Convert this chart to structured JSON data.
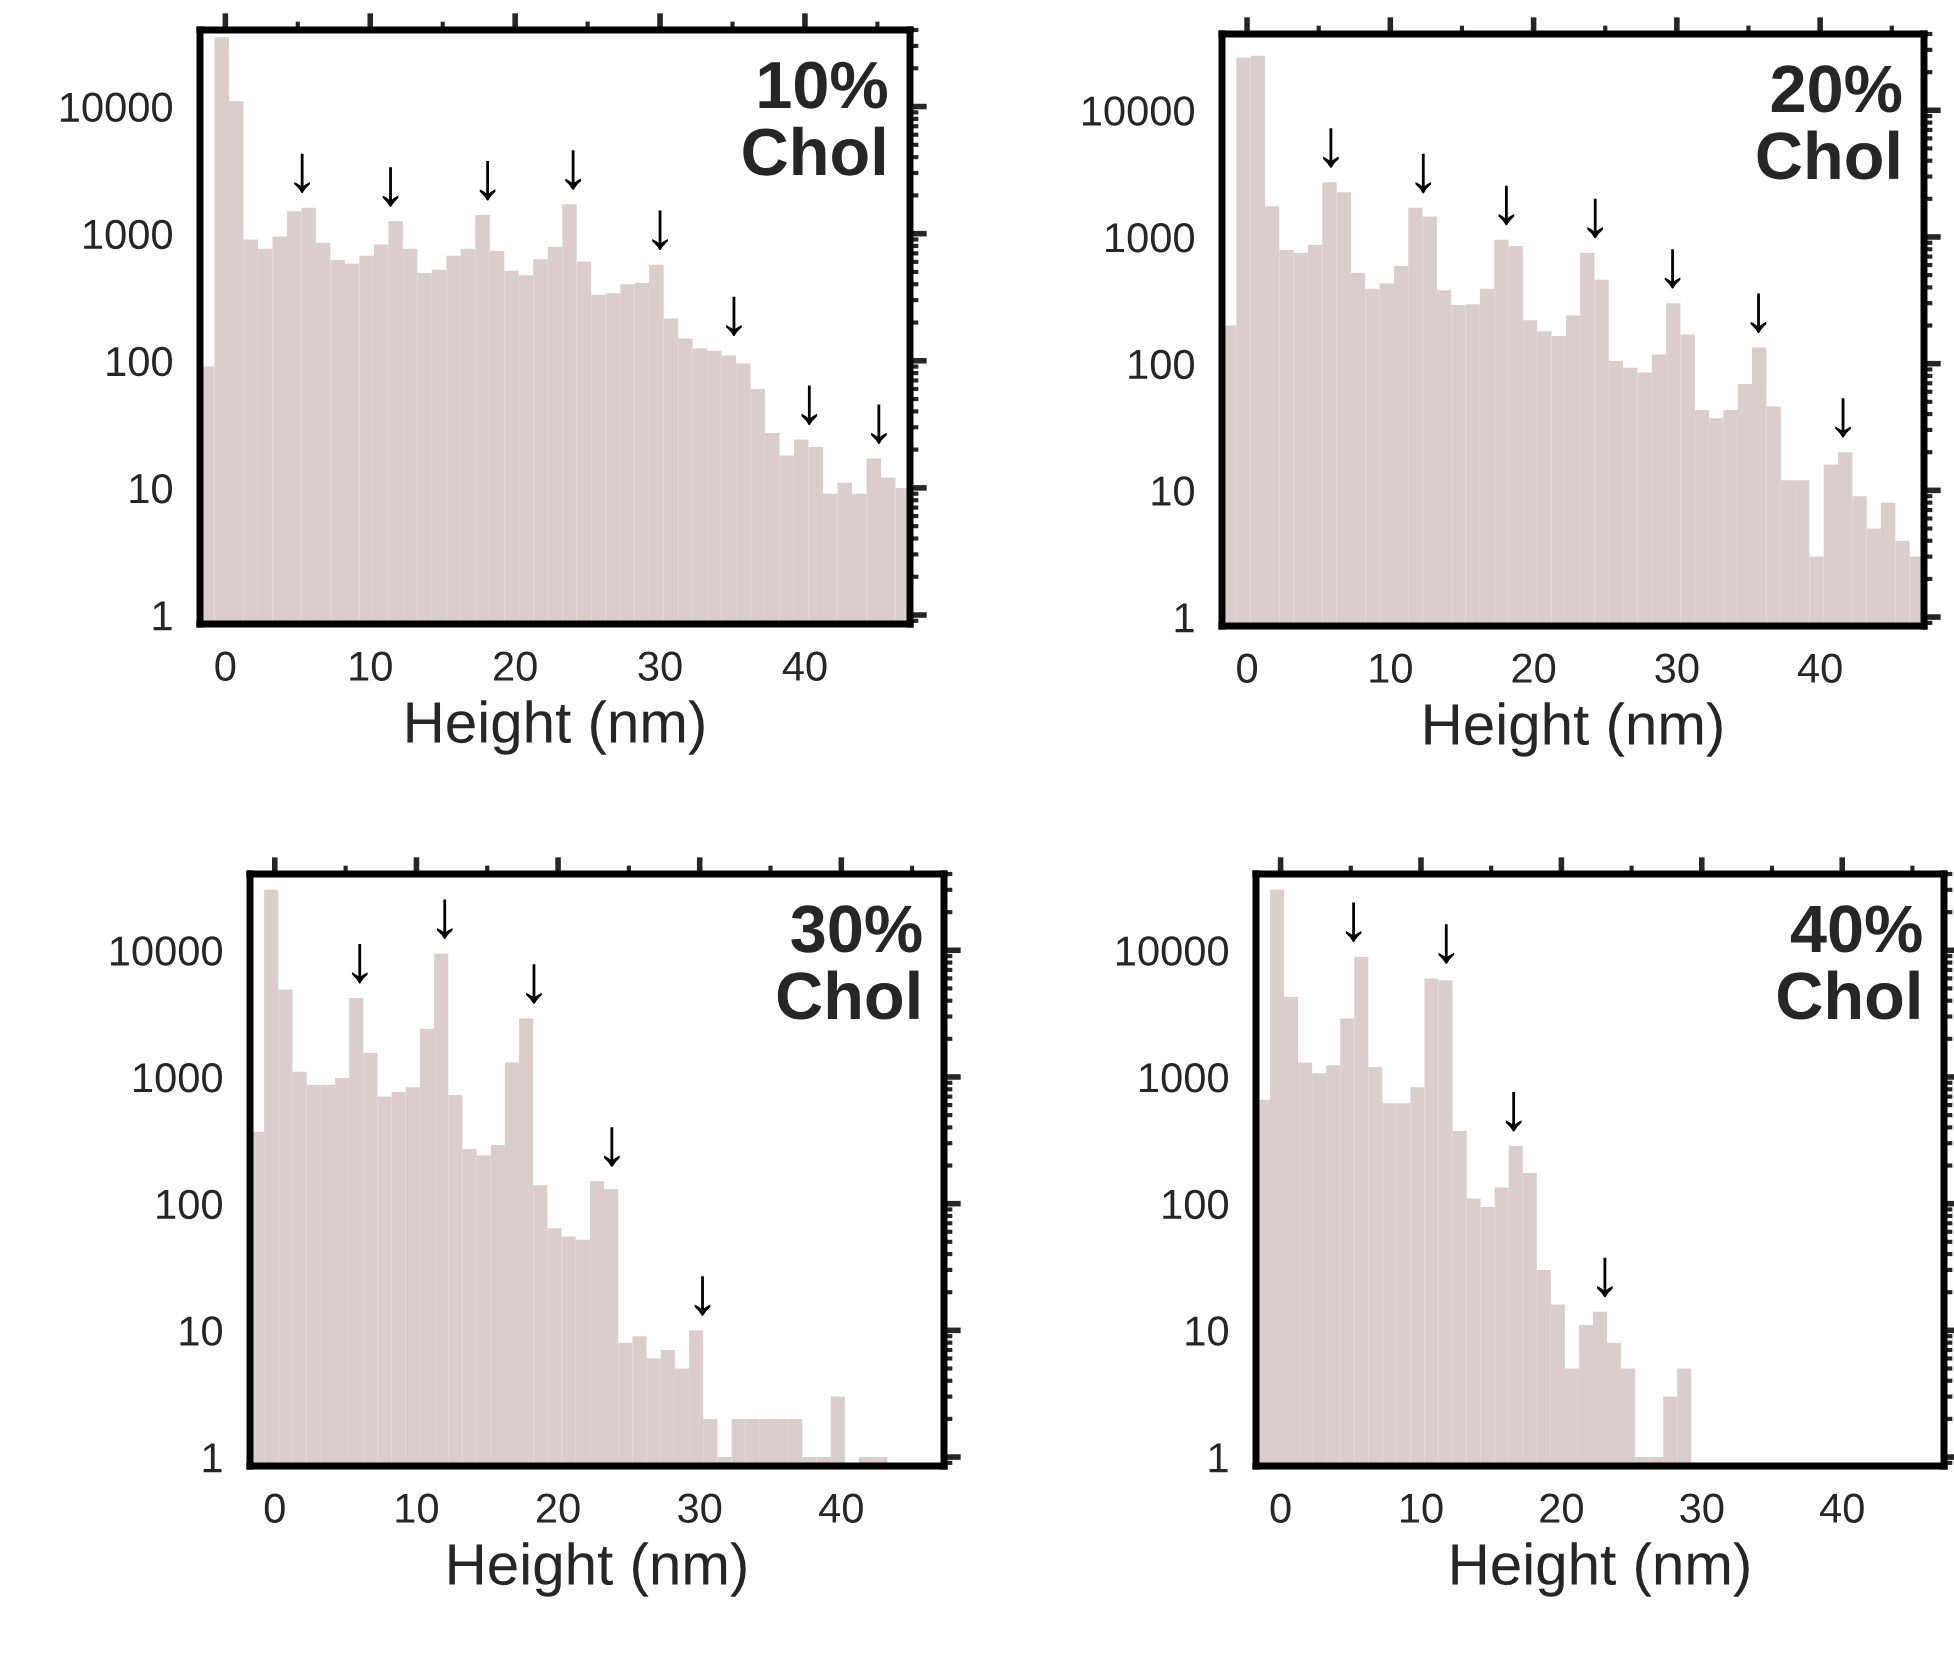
{
  "chart_data": [
    {
      "type": "histogram",
      "xlabel": "Height (nm)",
      "color": "#dbcdcb",
      "log": "y",
      "xlim": [
        -1.75,
        47.25
      ],
      "ylim": [
        0.85,
        40000
      ],
      "xticks": [
        0,
        10,
        20,
        30,
        40
      ],
      "yticks": [
        1,
        10,
        100,
        1000,
        10000
      ],
      "bins": [
        -1.75,
        -0.75,
        0.25,
        1.25,
        2.25,
        3.25,
        4.25,
        5.25,
        6.25,
        7.25,
        8.25,
        9.25,
        10.25,
        11.25,
        12.25,
        13.25,
        14.25,
        15.25,
        16.25,
        17.25,
        18.25,
        19.25,
        20.25,
        21.25,
        22.25,
        23.25,
        24.25,
        25.25,
        26.25,
        27.25,
        28.25,
        29.25,
        30.25,
        31.25,
        32.25,
        33.25,
        34.25,
        35.25,
        36.25,
        37.25,
        38.25,
        39.25,
        40.25,
        41.25,
        42.25,
        43.25,
        44.25,
        45.25,
        46.25,
        47.25
      ],
      "values": [
        90,
        35000,
        11000,
        900,
        760,
        950,
        1500,
        1600,
        850,
        620,
        580,
        670,
        820,
        1250,
        760,
        490,
        520,
        670,
        760,
        1400,
        730,
        510,
        470,
        630,
        790,
        1700,
        600,
        330,
        340,
        400,
        410,
        570,
        215,
        150,
        125,
        120,
        110,
        95,
        60,
        27,
        18,
        24,
        21,
        9,
        11,
        9,
        17,
        12,
        10
      ],
      "annotations": [
        "10%\nChol",
        {
          "text": "↓",
          "x": 5.3,
          "y": 1600
        },
        {
          "text": "↓",
          "x": 11.4,
          "y": 1250
        },
        {
          "text": "↓",
          "x": 18.1,
          "y": 1400
        },
        {
          "text": "↓",
          "x": 24,
          "y": 1700
        },
        {
          "text": "↓",
          "x": 30,
          "y": 570
        },
        {
          "text": "↓",
          "x": 35.1,
          "y": 120
        },
        {
          "text": "↓",
          "x": 40.3,
          "y": 24
        },
        {
          "text": "↓",
          "x": 45.1,
          "y": 17
        }
      ]
    },
    {
      "type": "histogram",
      "xlabel": "Height (nm)",
      "color": "#dbcdcb",
      "log": "y",
      "xlim": [
        -1.75,
        47.25
      ],
      "ylim": [
        0.85,
        40000
      ],
      "xticks": [
        0,
        10,
        20,
        30,
        40
      ],
      "yticks": [
        1,
        10,
        100,
        1000,
        10000
      ],
      "bins": [
        -1.75,
        -0.75,
        0.25,
        1.25,
        2.25,
        3.25,
        4.25,
        5.25,
        6.25,
        7.25,
        8.25,
        9.25,
        10.25,
        11.25,
        12.25,
        13.25,
        14.25,
        15.25,
        16.25,
        17.25,
        18.25,
        19.25,
        20.25,
        21.25,
        22.25,
        23.25,
        24.25,
        25.25,
        26.25,
        27.25,
        28.25,
        29.25,
        30.25,
        31.25,
        32.25,
        33.25,
        34.25,
        35.25,
        36.25,
        37.25,
        38.25,
        39.25,
        40.25,
        41.25,
        42.25,
        43.25,
        44.25,
        45.25,
        46.25,
        47.25
      ],
      "values": [
        200,
        26000,
        27000,
        1750,
        790,
        750,
        870,
        2700,
        2250,
        520,
        390,
        430,
        590,
        1700,
        1450,
        380,
        290,
        295,
        390,
        950,
        850,
        220,
        180,
        165,
        240,
        750,
        460,
        105,
        93,
        85,
        118,
        300,
        170,
        43,
        37,
        43,
        69,
        134,
        46,
        12,
        12,
        3,
        16,
        20,
        9,
        5,
        8,
        4,
        3
      ],
      "annotations": [
        "20%\nChol",
        {
          "text": "↓",
          "x": 5.85,
          "y": 2700
        },
        {
          "text": "↓",
          "x": 12.3,
          "y": 1700
        },
        {
          "text": "↓",
          "x": 18.1,
          "y": 950
        },
        {
          "text": "↓",
          "x": 24.3,
          "y": 750
        },
        {
          "text": "↓",
          "x": 29.7,
          "y": 300
        },
        {
          "text": "↓",
          "x": 35.7,
          "y": 134
        },
        {
          "text": "↓",
          "x": 41.6,
          "y": 20
        }
      ]
    },
    {
      "type": "histogram",
      "xlabel": "Height (nm)",
      "color": "#dbcdcb",
      "log": "y",
      "xlim": [
        -1.75,
        47.25
      ],
      "ylim": [
        0.85,
        40000
      ],
      "xticks": [
        0,
        10,
        20,
        30,
        40
      ],
      "yticks": [
        1,
        10,
        100,
        1000,
        10000
      ],
      "bins": [
        -1.75,
        -0.75,
        0.25,
        1.25,
        2.25,
        3.25,
        4.25,
        5.25,
        6.25,
        7.25,
        8.25,
        9.25,
        10.25,
        11.25,
        12.25,
        13.25,
        14.25,
        15.25,
        16.25,
        17.25,
        18.25,
        19.25,
        20.25,
        21.25,
        22.25,
        23.25,
        24.25,
        25.25,
        26.25,
        27.25,
        28.25,
        29.25,
        30.25,
        31.25,
        32.25,
        33.25,
        34.25,
        35.25,
        36.25,
        37.25,
        38.25,
        39.25,
        40.25,
        41.25,
        42.25,
        43.25,
        44.25,
        45.25,
        46.25,
        47.25
      ],
      "values": [
        370,
        30000,
        4900,
        1100,
        870,
        870,
        980,
        4200,
        1550,
        700,
        760,
        830,
        2400,
        9400,
        720,
        270,
        240,
        290,
        1300,
        2900,
        140,
        64,
        55,
        52,
        150,
        130,
        8,
        9,
        6,
        7,
        5,
        10,
        2,
        1,
        2,
        2,
        2,
        2,
        2,
        1,
        1,
        3,
        null,
        1,
        1,
        null,
        null,
        null,
        null
      ],
      "annotations": [
        "30%\nChol",
        {
          "text": "↓",
          "x": 6.0,
          "y": 4200
        },
        {
          "text": "↓",
          "x": 12.0,
          "y": 9400
        },
        {
          "text": "↓",
          "x": 18.3,
          "y": 2900
        },
        {
          "text": "↓",
          "x": 23.8,
          "y": 150
        },
        {
          "text": "↓",
          "x": 30.2,
          "y": 10
        }
      ]
    },
    {
      "type": "histogram",
      "xlabel": "Height (nm)",
      "color": "#dbcdcb",
      "log": "y",
      "xlim": [
        -1.75,
        47.25
      ],
      "ylim": [
        0.85,
        40000
      ],
      "xticks": [
        0,
        10,
        20,
        30,
        40
      ],
      "yticks": [
        1,
        10,
        100,
        1000,
        10000
      ],
      "bins": [
        -1.75,
        -0.75,
        0.25,
        1.25,
        2.25,
        3.25,
        4.25,
        5.25,
        6.25,
        7.25,
        8.25,
        9.25,
        10.25,
        11.25,
        12.25,
        13.25,
        14.25,
        15.25,
        16.25,
        17.25,
        18.25,
        19.25,
        20.25,
        21.25,
        22.25,
        23.25,
        24.25,
        25.25,
        26.25,
        27.25,
        28.25,
        29.25,
        30.25,
        31.25,
        32.25,
        33.25,
        34.25,
        35.25,
        36.25,
        37.25,
        38.25,
        39.25,
        40.25,
        41.25,
        42.25,
        43.25,
        44.25,
        45.25,
        46.25,
        47.25
      ],
      "values": [
        660,
        30000,
        4300,
        1300,
        1070,
        1240,
        2900,
        8900,
        1200,
        620,
        620,
        830,
        6000,
        5800,
        375,
        110,
        94,
        134,
        285,
        175,
        30,
        16,
        5,
        11,
        14,
        8,
        5,
        1,
        1,
        3,
        5,
        null,
        null,
        null,
        null,
        null,
        null,
        null,
        null,
        null,
        null,
        null,
        null,
        null,
        null,
        null,
        null,
        null,
        null
      ],
      "annotations": [
        "40%\nChol",
        {
          "text": "↓",
          "x": 5.2,
          "y": 8900
        },
        {
          "text": "↓",
          "x": 11.8,
          "y": 6000
        },
        {
          "text": "↓",
          "x": 16.6,
          "y": 285
        },
        {
          "text": "↓",
          "x": 23.1,
          "y": 14
        }
      ]
    }
  ]
}
